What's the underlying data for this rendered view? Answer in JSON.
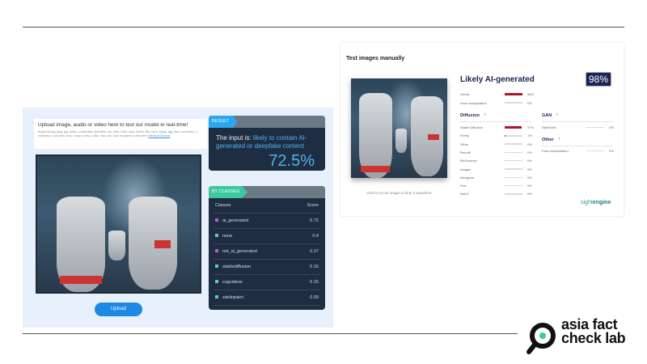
{
  "left_panel": {
    "upload_title": "Upload image, audio or video here to test our model in real-time!",
    "upload_desc": "Supports png, jpeg, jpg, webp, x-matroska, quicktime, avi, wmv, h264, mp4, webm, flac, mp3, mpeg, ogg, wav, x-msvideo, x-matroska, x-ms-wmv, mov, x-wav, x-m4a, x-flac, wav, mkv. Use is subject to this site's",
    "terms_link": "Terms of Service",
    "upload_button": "Upload",
    "result": {
      "tag": "RESULT",
      "prefix": "The input is: ",
      "verdict": "likely to contain AI-generated or deepfake content",
      "score": "72.5%"
    },
    "classes": {
      "tag": "BY CLASSES",
      "header_class": "Classes",
      "header_score": "Score",
      "rows": [
        {
          "name": "ai_generated",
          "score": "0.72",
          "color": "#b45bd6"
        },
        {
          "name": "none",
          "score": "0.4",
          "color": "#4fd1c5"
        },
        {
          "name": "not_ai_generated",
          "score": "0.27",
          "color": "#b45bd6"
        },
        {
          "name": "stablediffusion",
          "score": "0.16",
          "color": "#4fd1c5"
        },
        {
          "name": "cogvideos",
          "score": "0.15",
          "color": "#4fd1c5"
        },
        {
          "name": "sdxlinpaint",
          "score": "0.09",
          "color": "#4fd1c5"
        }
      ]
    }
  },
  "right_panel": {
    "title": "Test images manually",
    "hint": "Click to try an image or drop it anywhere",
    "verdict": "Likely AI-generated",
    "score": "98%",
    "top": [
      {
        "label": "GenAI",
        "value": "98%",
        "fill": 98
      },
      {
        "label": "Face manipulation",
        "value": "0%",
        "fill": 0
      }
    ],
    "diffusion_title": "Diffusion",
    "help": "?",
    "diffusion": [
      {
        "label": "Stable Diffusion",
        "value": "97%",
        "fill": 97
      },
      {
        "label": "Firefly",
        "value": "1%",
        "fill": 1
      },
      {
        "label": "Other",
        "value": "0%",
        "fill": 0
      },
      {
        "label": "Recraft",
        "value": "0%",
        "fill": 0
      },
      {
        "label": "MidJourney",
        "value": "0%",
        "fill": 0
      },
      {
        "label": "Imagen",
        "value": "0%",
        "fill": 0
      },
      {
        "label": "Ideogram",
        "value": "0%",
        "fill": 0
      },
      {
        "label": "Flux",
        "value": "0%",
        "fill": 0
      },
      {
        "label": "Dall-E",
        "value": "0%",
        "fill": 0
      }
    ],
    "gan_title": "GAN",
    "gan": [
      {
        "label": "StyleGAN",
        "value": "0%",
        "fill": 0
      }
    ],
    "other_title": "Other",
    "other": [
      {
        "label": "Face manipulation",
        "value": "0%",
        "fill": 0
      }
    ],
    "brand_a": "sight",
    "brand_b": "engine"
  },
  "logo": {
    "line1": "asia fact",
    "line2": "check lab"
  }
}
